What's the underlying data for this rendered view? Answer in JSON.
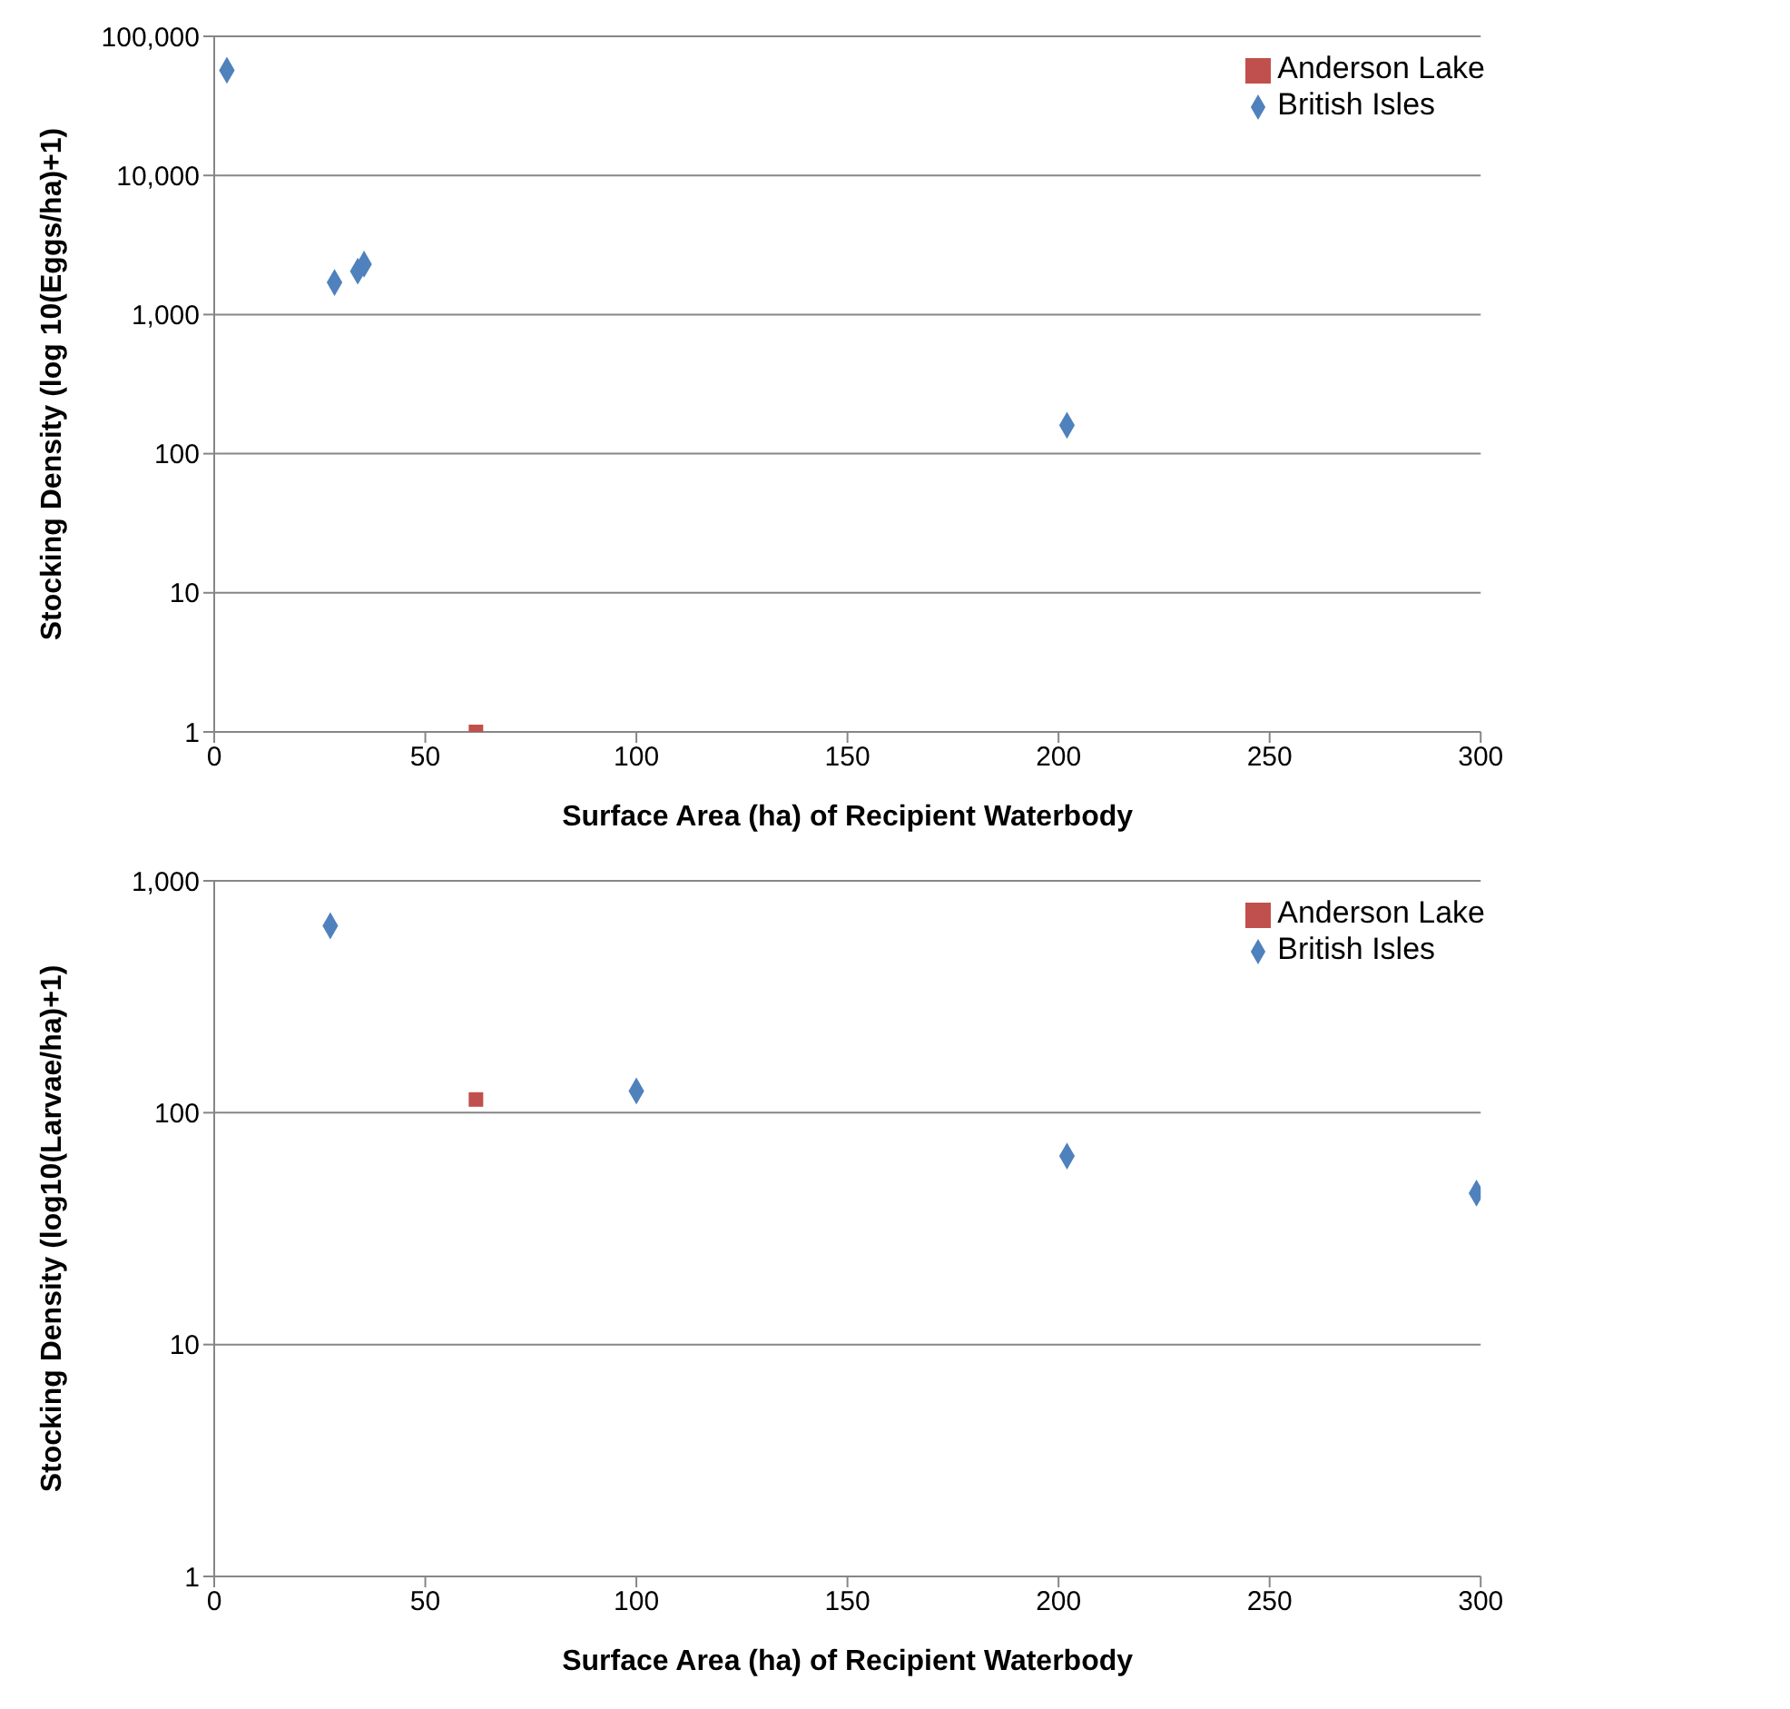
{
  "chart_data": [
    {
      "type": "scatter",
      "xlabel": "Surface Area (ha) of Recipient Waterbody",
      "ylabel": "Stocking Density (log 10(Eggs/ha)+1)",
      "log": "y",
      "grid": "y",
      "legend": "top right",
      "xlim": [
        0,
        300
      ],
      "xticks": [
        0,
        50,
        100,
        150,
        200,
        250,
        300
      ],
      "ylim": [
        1,
        100000
      ],
      "yticks": [
        {
          "value": 1,
          "label": "1"
        },
        {
          "value": 10,
          "label": "10"
        },
        {
          "value": 100,
          "label": "100"
        },
        {
          "value": 1000,
          "label": "1,000"
        },
        {
          "value": 10000,
          "label": "10,000"
        },
        {
          "value": 100000,
          "label": "100,000"
        }
      ],
      "series": [
        {
          "name": "British Isles",
          "color": "#4f81bd",
          "marker": "diamond",
          "x": [
            3,
            28.5,
            34,
            35.5,
            202
          ],
          "values": [
            57000,
            1700,
            2050,
            2300,
            160
          ]
        },
        {
          "name": "Anderson Lake",
          "color": "#c0504d",
          "marker": "square",
          "x": [
            62
          ],
          "values": [
            1
          ]
        }
      ]
    },
    {
      "type": "scatter",
      "xlabel": "Surface Area (ha) of Recipient Waterbody",
      "ylabel": "Stocking Density (log10(Larvae/ha)+1)",
      "log": "y",
      "grid": "y",
      "legend": "top right",
      "xlim": [
        0,
        300
      ],
      "xticks": [
        0,
        50,
        100,
        150,
        200,
        250,
        300
      ],
      "ylim": [
        1,
        1000
      ],
      "yticks": [
        {
          "value": 1,
          "label": "1"
        },
        {
          "value": 10,
          "label": "10"
        },
        {
          "value": 100,
          "label": "100"
        },
        {
          "value": 1000,
          "label": "1,000"
        }
      ],
      "series": [
        {
          "name": "British Isles",
          "color": "#4f81bd",
          "marker": "diamond",
          "x": [
            27.5,
            100,
            202,
            299
          ],
          "values": [
            640,
            124,
            65,
            45
          ]
        },
        {
          "name": "Anderson Lake",
          "color": "#c0504d",
          "marker": "square",
          "x": [
            62
          ],
          "values": [
            114
          ]
        }
      ]
    }
  ]
}
